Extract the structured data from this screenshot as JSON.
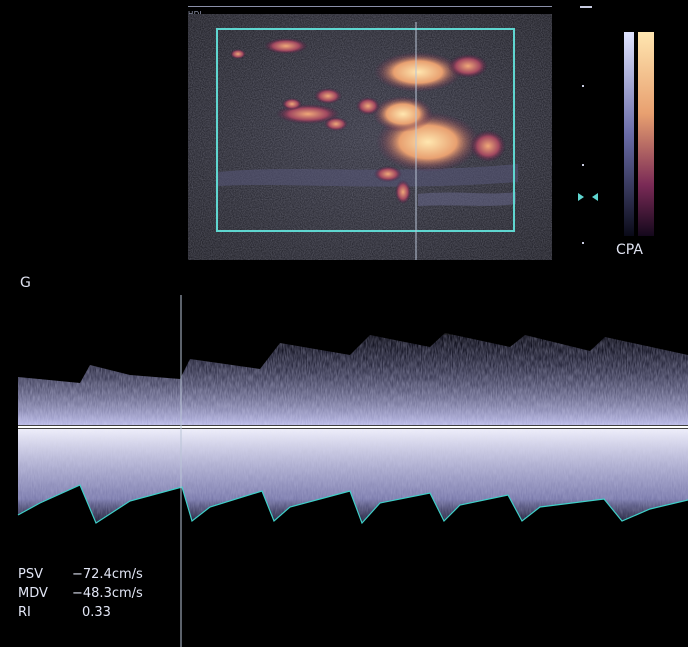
{
  "header": {
    "machine_label": "HDI"
  },
  "colorbar": {
    "label": "CPA"
  },
  "spectral": {
    "gain_label": "G"
  },
  "measurements": [
    {
      "name": "PSV",
      "value": "−72.4cm/s"
    },
    {
      "name": "MDV",
      "value": "−48.3cm/s"
    },
    {
      "name": "RI",
      "value": "0.33"
    }
  ],
  "colors": {
    "roi_box": "#5fd6d0",
    "baseline": "#ffffff",
    "envelope": "#3fd0c8",
    "spectrum": "#b8b8f0"
  }
}
